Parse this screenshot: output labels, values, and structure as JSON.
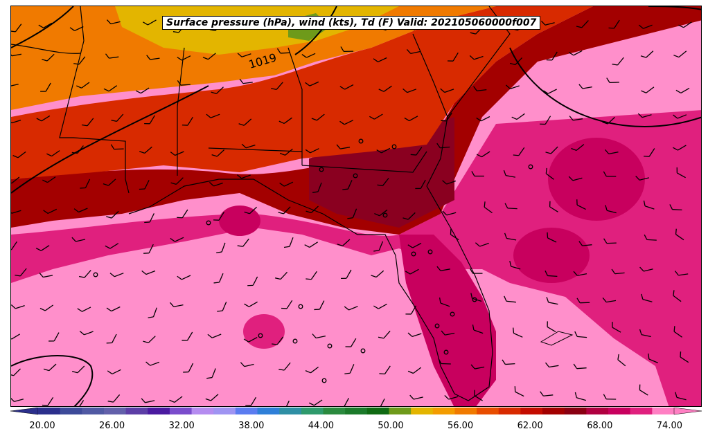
{
  "title": "Surface pressure (hPa), wind (kts), Td (F) Valid: 202105060000f007",
  "isobar_label": "1019",
  "colorbar": {
    "ticks": [
      "20.00",
      "26.00",
      "32.00",
      "38.00",
      "44.00",
      "50.00",
      "56.00",
      "62.00",
      "68.00",
      "74.00"
    ],
    "colors": [
      "#2b2f8c",
      "#3d4a99",
      "#5059a3",
      "#6260aa",
      "#5c3ea6",
      "#4a1aa0",
      "#7a4ccc",
      "#b58cf0",
      "#9f94f2",
      "#5b7cf0",
      "#2e7fd8",
      "#2e8fa4",
      "#2e9a6c",
      "#2a8a3e",
      "#1b7a2a",
      "#0f6a12",
      "#6e9a1a",
      "#e3b500",
      "#f39c00",
      "#f07a00",
      "#e84d00",
      "#d82a00",
      "#c40c00",
      "#a30000",
      "#8a0012",
      "#b00040",
      "#c8005e",
      "#e0207e",
      "#ff7fc3"
    ]
  },
  "icons": {
    "wind_barb": "wind-barb-icon",
    "calm_wind": "calm-circle-icon"
  }
}
